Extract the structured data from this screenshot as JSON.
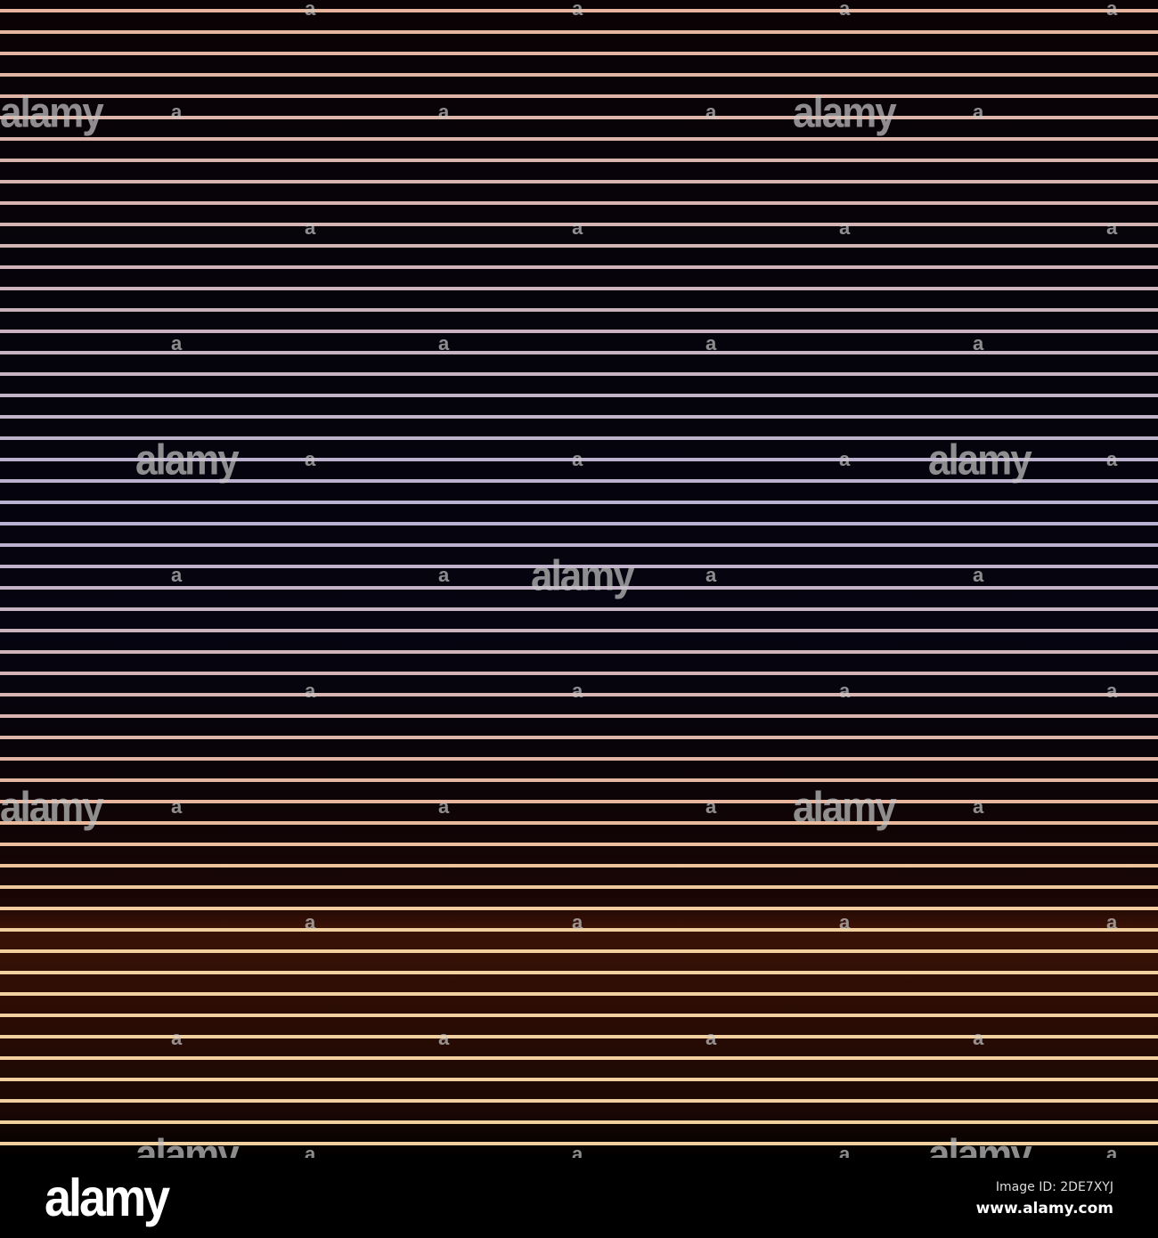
{
  "image": {
    "subject": "horizontal stripes",
    "colors": {
      "top": "#e8b59c",
      "middle": "#b8b2d4",
      "bottom": "#f2cf9e",
      "background": "#000000",
      "glow": "#3a1206"
    }
  },
  "watermark": {
    "text": "alamy"
  },
  "footer": {
    "logo": "alamy",
    "image_id": "Image ID: 2DE7XYJ",
    "website": "www.alamy.com"
  }
}
